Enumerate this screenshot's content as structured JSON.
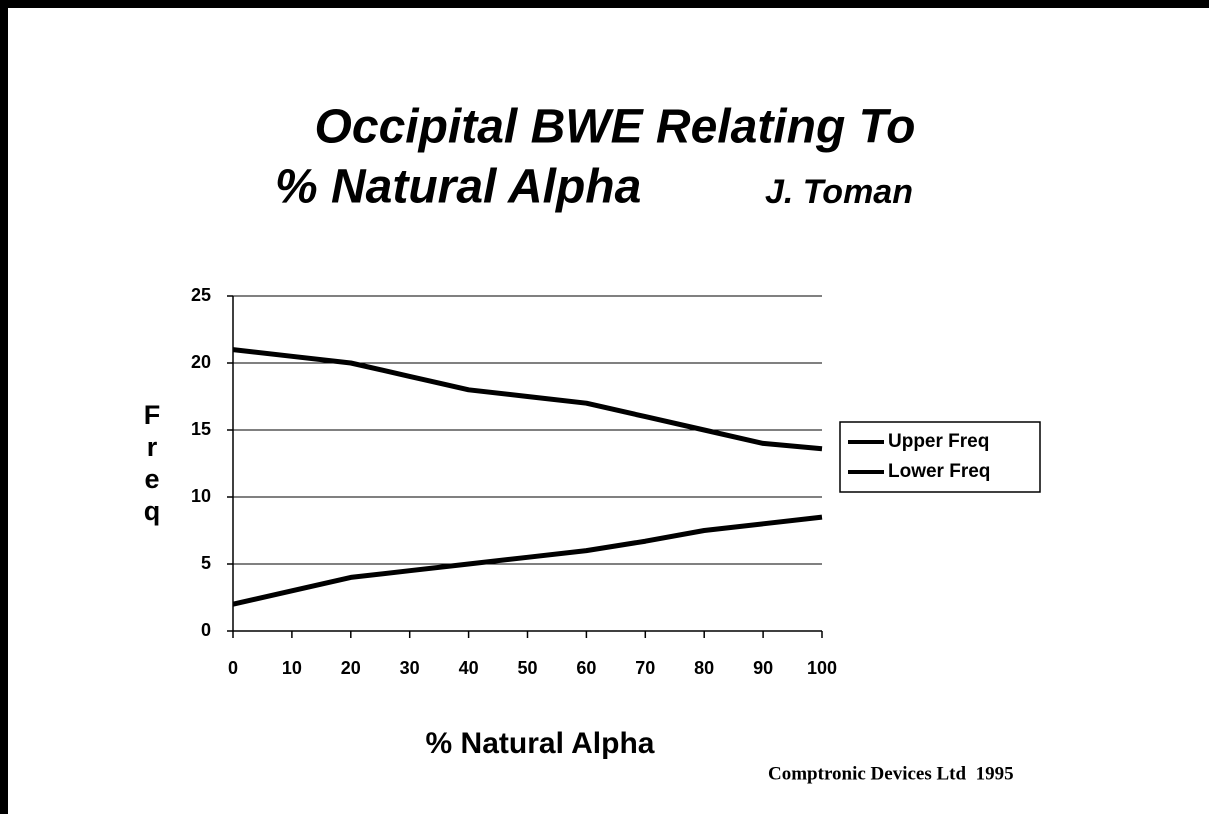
{
  "chart_data": {
    "type": "line",
    "title": "Occipital BWE Relating To",
    "subtitle": "% Natural Alpha",
    "author": "J. Toman",
    "ylabel": "Freq",
    "xlabel": "% Natural Alpha",
    "footer": "Comptronic Devices Ltd  1995",
    "x": [
      0,
      10,
      20,
      30,
      40,
      50,
      60,
      70,
      80,
      90,
      100
    ],
    "series": [
      {
        "name": "Upper Freq",
        "color": "#000000",
        "values": [
          21,
          20.5,
          20,
          19,
          18,
          17.5,
          17,
          16,
          15,
          14,
          13.6
        ]
      },
      {
        "name": "Lower Freq",
        "color": "#000000",
        "values": [
          2,
          3,
          4,
          4.5,
          5,
          5.5,
          6,
          6.7,
          7.5,
          8,
          8.5
        ]
      }
    ],
    "xlim": [
      0,
      100
    ],
    "xticks": [
      0,
      10,
      20,
      30,
      40,
      50,
      60,
      70,
      80,
      90,
      100
    ],
    "ylim": [
      0,
      25
    ],
    "yticks": [
      0,
      5,
      10,
      15,
      20,
      25
    ],
    "grid": true,
    "legend": "right"
  }
}
